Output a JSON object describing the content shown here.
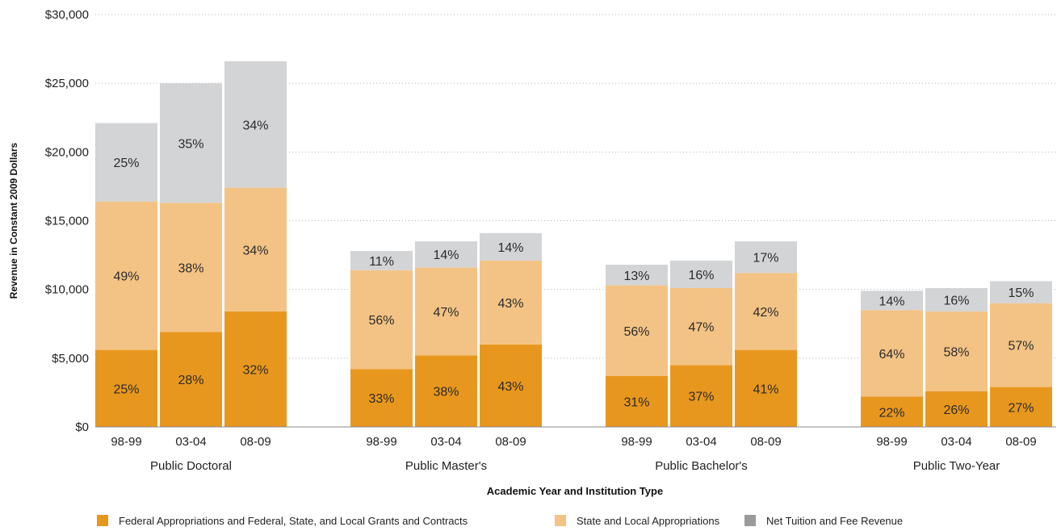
{
  "chart_data": {
    "type": "bar",
    "stacked": true,
    "ylabel": "Revenue in Constant 2009 Dollars",
    "xlabel": "Academic Year and Institution Type",
    "ylim": [
      0,
      30000
    ],
    "yticks": [
      "$0",
      "$5,000",
      "$10,000",
      "$15,000",
      "$20,000",
      "$25,000",
      "$30,000"
    ],
    "ytick_values": [
      0,
      5000,
      10000,
      15000,
      20000,
      25000,
      30000
    ],
    "grid": "horizontal dotted",
    "legend_position": "bottom",
    "colors": {
      "federal": "#e8971e",
      "state": "#f3c385",
      "tuition": "#d3d4d6"
    },
    "series": [
      {
        "name": "Federal Appropriations and Federal, State, and Local Grants and Contracts",
        "key": "federal"
      },
      {
        "name": "State and Local Appropriations",
        "key": "state"
      },
      {
        "name": "Net Tuition and Fee Revenue",
        "key": "tuition"
      }
    ],
    "groups": [
      {
        "name": "Public Doctoral",
        "bars": [
          {
            "label": "98-99",
            "values": [
              5600,
              10800,
              5700
            ],
            "labels": [
              "25%",
              "49%",
              "25%"
            ]
          },
          {
            "label": "03-04",
            "values": [
              6900,
              9400,
              8700
            ],
            "labels": [
              "28%",
              "38%",
              "35%"
            ]
          },
          {
            "label": "08-09",
            "values": [
              8400,
              9000,
              9200
            ],
            "labels": [
              "32%",
              "34%",
              "34%"
            ]
          }
        ]
      },
      {
        "name": "Public Master's",
        "bars": [
          {
            "label": "98-99",
            "values": [
              4200,
              7200,
              1400
            ],
            "labels": [
              "33%",
              "56%",
              "11%"
            ]
          },
          {
            "label": "03-04",
            "values": [
              5200,
              6400,
              1900
            ],
            "labels": [
              "38%",
              "47%",
              "14%"
            ]
          },
          {
            "label": "08-09",
            "values": [
              6000,
              6100,
              2000
            ],
            "labels": [
              "43%",
              "43%",
              "14%"
            ]
          }
        ]
      },
      {
        "name": "Public Bachelor's",
        "bars": [
          {
            "label": "98-99",
            "values": [
              3700,
              6600,
              1500
            ],
            "labels": [
              "31%",
              "56%",
              "13%"
            ]
          },
          {
            "label": "03-04",
            "values": [
              4500,
              5600,
              2000
            ],
            "labels": [
              "37%",
              "47%",
              "16%"
            ]
          },
          {
            "label": "08-09",
            "values": [
              5600,
              5600,
              2300
            ],
            "labels": [
              "41%",
              "42%",
              "17%"
            ]
          }
        ]
      },
      {
        "name": "Public Two-Year",
        "bars": [
          {
            "label": "98-99",
            "values": [
              2200,
              6300,
              1400
            ],
            "labels": [
              "22%",
              "64%",
              "14%"
            ]
          },
          {
            "label": "03-04",
            "values": [
              2600,
              5800,
              1700
            ],
            "labels": [
              "26%",
              "58%",
              "16%"
            ]
          },
          {
            "label": "08-09",
            "values": [
              2900,
              6100,
              1600
            ],
            "labels": [
              "27%",
              "57%",
              "15%"
            ]
          }
        ]
      }
    ]
  }
}
